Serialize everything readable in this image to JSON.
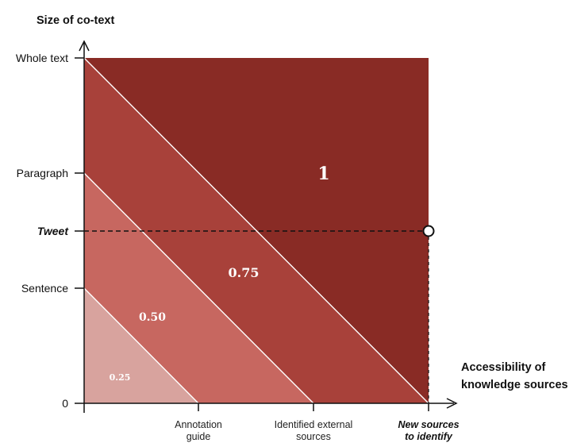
{
  "y_axis": {
    "title": "Size of co-text",
    "levels": [
      {
        "label": "Whole text",
        "emphasis": false
      },
      {
        "label": "Paragraph",
        "emphasis": false
      },
      {
        "label": "Tweet",
        "emphasis": true
      },
      {
        "label": "Sentence",
        "emphasis": false
      },
      {
        "label": "0",
        "emphasis": false
      }
    ]
  },
  "x_axis": {
    "title_line1": "Accessibility of",
    "title_line2": "knowledge sources",
    "levels": [
      {
        "line1": "Annotation",
        "line2": "guide",
        "emphasis": false
      },
      {
        "line1": "Identified external",
        "line2": "sources",
        "emphasis": false
      },
      {
        "line1": "New sources",
        "line2": "to identify",
        "emphasis": true
      }
    ]
  },
  "regions": [
    {
      "value": "0.25",
      "color": "#d8a39e"
    },
    {
      "value": "0.50",
      "color": "#c76760"
    },
    {
      "value": "0.75",
      "color": "#a8413a"
    },
    {
      "value": "1",
      "color": "#892b25"
    }
  ]
}
